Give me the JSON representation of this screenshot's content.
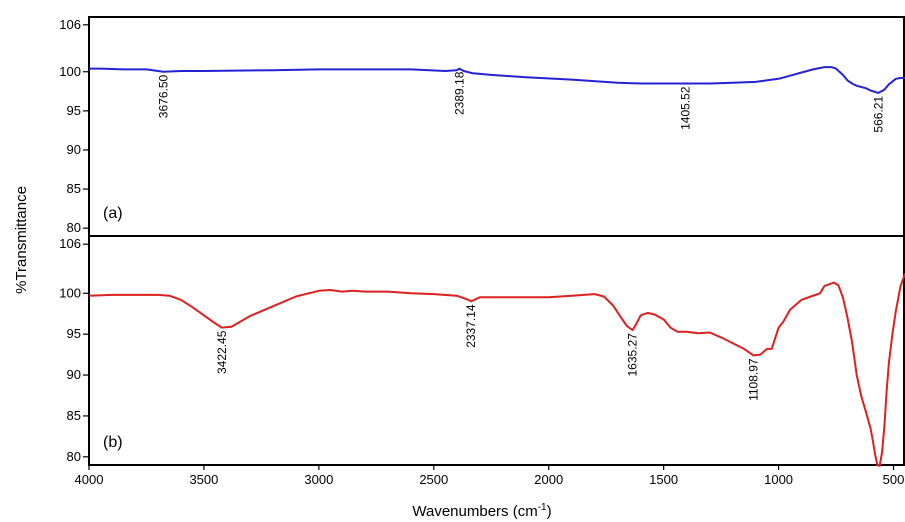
{
  "chart_data": {
    "type": "line",
    "xlabel": "Wavenumbers (cm",
    "xlabel_sup": "-1",
    "xlabel_close": ")",
    "ylabel": "%Transmittance",
    "xlim": [
      4000,
      450
    ],
    "x_reversed": true,
    "xticks": [
      4000,
      3500,
      3000,
      2500,
      2000,
      1500,
      1000,
      500
    ],
    "panels": [
      {
        "label": "(a)",
        "color": "#2323d4",
        "ylim": [
          79,
          107
        ],
        "yticks": [
          80,
          85,
          90,
          95,
          100,
          106
        ],
        "series": {
          "x": [
            4000,
            3950,
            3850,
            3750,
            3700,
            3676.5,
            3600,
            3500,
            3200,
            3000,
            2800,
            2600,
            2450,
            2400,
            2389.18,
            2370,
            2330,
            2250,
            2100,
            1900,
            1700,
            1600,
            1500,
            1405.52,
            1300,
            1200,
            1100,
            1000,
            950,
            900,
            850,
            800,
            770,
            750,
            720,
            700,
            680,
            660,
            620,
            600,
            566.21,
            540,
            520,
            490,
            470,
            450
          ],
          "y": [
            100.4,
            100.4,
            100.3,
            100.3,
            100.1,
            100.0,
            100.1,
            100.1,
            100.2,
            100.3,
            100.3,
            100.3,
            100.1,
            100.2,
            100.4,
            100.1,
            99.8,
            99.6,
            99.3,
            99.0,
            98.6,
            98.5,
            98.5,
            98.5,
            98.5,
            98.6,
            98.7,
            99.1,
            99.5,
            99.9,
            100.3,
            100.6,
            100.6,
            100.4,
            99.6,
            98.9,
            98.5,
            98.2,
            97.9,
            97.6,
            97.3,
            97.7,
            98.4,
            99.1,
            99.2,
            99.2
          ]
        },
        "peaks": [
          {
            "x": 3676.5,
            "text": "3676.50"
          },
          {
            "x": 2389.18,
            "text": "2389.18"
          },
          {
            "x": 1405.52,
            "text": "1405.52"
          },
          {
            "x": 566.21,
            "text": "566.21"
          }
        ]
      },
      {
        "label": "(b)",
        "color": "#dd2020",
        "ylim": [
          79,
          107
        ],
        "yticks": [
          80,
          85,
          90,
          95,
          100,
          106
        ],
        "series": {
          "x": [
            4000,
            3900,
            3800,
            3700,
            3650,
            3600,
            3550,
            3500,
            3450,
            3422.45,
            3380,
            3300,
            3200,
            3100,
            3000,
            2950,
            2900,
            2850,
            2800,
            2700,
            2600,
            2500,
            2400,
            2350,
            2337.14,
            2300,
            2200,
            2000,
            1900,
            1800,
            1760,
            1720,
            1690,
            1660,
            1635.27,
            1620,
            1600,
            1570,
            1540,
            1500,
            1470,
            1440,
            1400,
            1350,
            1300,
            1250,
            1200,
            1150,
            1108.97,
            1080,
            1050,
            1030,
            1000,
            980,
            950,
            900,
            860,
            820,
            800,
            780,
            760,
            740,
            720,
            700,
            680,
            660,
            640,
            620,
            600,
            590,
            580,
            570,
            560,
            550,
            540,
            530,
            520,
            505,
            490,
            470,
            450
          ],
          "y": [
            99.7,
            99.8,
            99.8,
            99.8,
            99.7,
            99.2,
            98.3,
            97.3,
            96.3,
            95.8,
            95.9,
            97.2,
            98.4,
            99.6,
            100.3,
            100.4,
            100.2,
            100.3,
            100.2,
            100.2,
            100.0,
            99.9,
            99.7,
            99.2,
            99.0,
            99.5,
            99.5,
            99.5,
            99.7,
            99.9,
            99.6,
            98.5,
            97.2,
            96.0,
            95.5,
            96.2,
            97.3,
            97.6,
            97.4,
            96.8,
            95.8,
            95.3,
            95.3,
            95.1,
            95.2,
            94.6,
            93.9,
            93.2,
            92.4,
            92.5,
            93.2,
            93.2,
            95.8,
            96.5,
            98.0,
            99.2,
            99.6,
            100.0,
            100.9,
            101.1,
            101.3,
            101.0,
            99.5,
            97.0,
            94.0,
            90.0,
            87.4,
            85.5,
            83.5,
            82.0,
            80.3,
            79.0,
            78.9,
            80.5,
            83.6,
            88.0,
            91.5,
            95.0,
            97.8,
            100.8,
            102.4
          ]
        },
        "peaks": [
          {
            "x": 3422.45,
            "text": "3422.45"
          },
          {
            "x": 2337.14,
            "text": "2337.14"
          },
          {
            "x": 1635.27,
            "text": "1635.27"
          },
          {
            "x": 1108.97,
            "text": "1108.97"
          }
        ]
      }
    ]
  }
}
